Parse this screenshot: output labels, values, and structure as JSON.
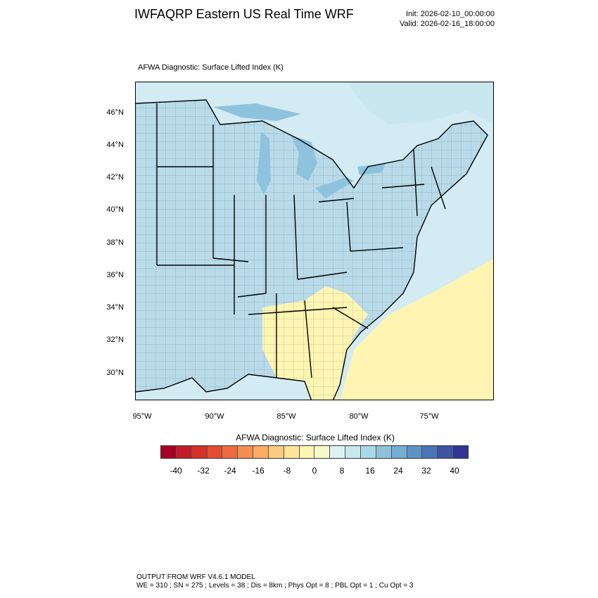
{
  "header": {
    "title": "IWFAQRP Eastern US Real Time WRF",
    "init": "Init: 2026-02-10_00:00:00",
    "valid": "Valid: 2026-02-16_18:00:00"
  },
  "plot": {
    "title": "AFWA Diagnostic: Surface Lifted Index   (K)",
    "lat_labels": [
      "46°N",
      "44°N",
      "42°N",
      "40°N",
      "38°N",
      "36°N",
      "34°N",
      "32°N",
      "30°N"
    ],
    "lon_labels": [
      "95°W",
      "90°W",
      "85°W",
      "80°W",
      "75°W"
    ]
  },
  "colorbar": {
    "title": "AFWA Diagnostic: Surface Lifted Index  (K)",
    "labels": [
      "-40",
      "-32",
      "-24",
      "-16",
      "-8",
      "0",
      "8",
      "16",
      "24",
      "32",
      "40"
    ],
    "colors": [
      "#a50026",
      "#c41a28",
      "#d7302a",
      "#e34d33",
      "#f06a3f",
      "#f68d53",
      "#fbad65",
      "#fdcb7d",
      "#fee59a",
      "#fff5b3",
      "#f7fbc8",
      "#e0f3f3",
      "#c8e7ee",
      "#abd8e8",
      "#8fc3dd",
      "#73add2",
      "#5b93c4",
      "#4a74b4",
      "#3d54a3",
      "#313695"
    ]
  },
  "map_colors": {
    "ocean": "#d3ebf2",
    "land_cool": "#b9dbe9",
    "land_mid": "#c8e7ee",
    "warm": "#fff5b3",
    "neutral": "#f7fbc8",
    "lake": "#8fc3dd"
  },
  "footer": {
    "line1": "OUTPUT FROM WRF V4.6.1 MODEL",
    "line2": "WE = 310 ; SN = 275 ; Levels = 38 ; Dis = 8km ; Phys Opt = 8 ; PBL Opt = 1 ; Cu Opt = 3"
  }
}
